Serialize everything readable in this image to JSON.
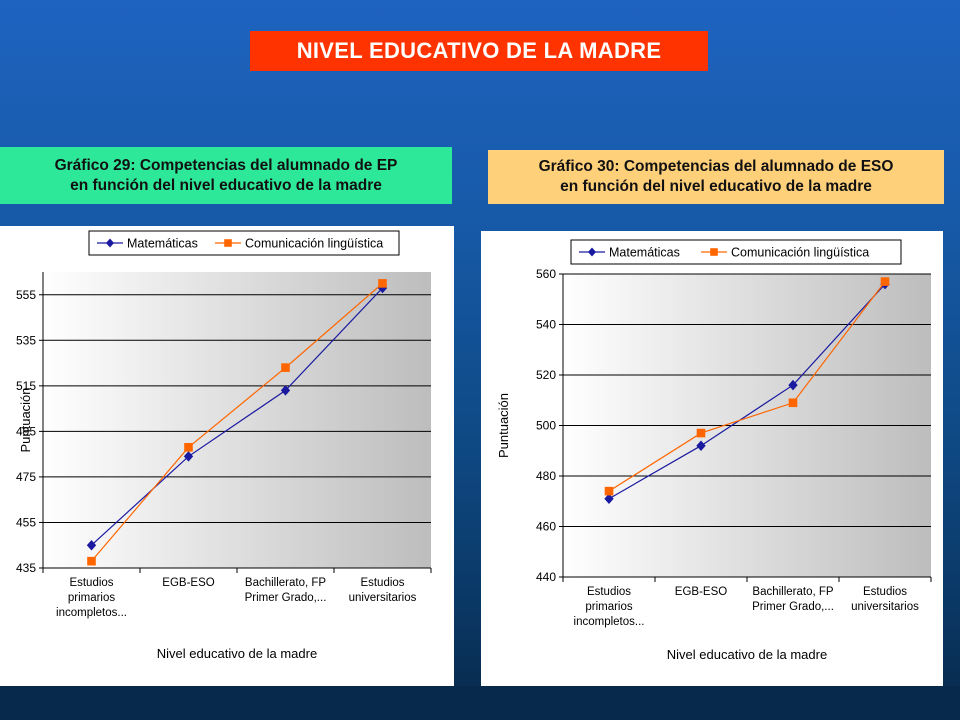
{
  "header": {
    "title": "NIVEL EDUCATIVO DE LA MADRE"
  },
  "chart_titles": {
    "left": [
      "Gráfico 29: Competencias del alumnado de EP",
      "en función del nivel educativo de la madre"
    ],
    "right": [
      "Gráfico 30: Competencias del alumnado de ESO",
      "en función del nivel educativo de la madre"
    ]
  },
  "colors": {
    "matematicas": "#1a1aa0",
    "comunicacion": "#ff6600",
    "title_bg": "#ff3300",
    "left_title_bg": "#2ee89a",
    "right_title_bg": "#ffd07a"
  },
  "chart_data": [
    {
      "type": "line",
      "xlabel": "Nivel educativo de la madre",
      "ylabel": "Puntuación",
      "ylim": [
        435,
        565
      ],
      "yticks": [
        "435",
        "455",
        "475",
        "495",
        "515",
        "535",
        "555"
      ],
      "ytick_values": [
        435,
        455,
        475,
        495,
        515,
        535,
        555
      ],
      "categories": [
        [
          "Estudios",
          "primarios",
          "incompletos..."
        ],
        [
          "EGB-ESO"
        ],
        [
          "Bachillerato, FP",
          "Primer Grado,..."
        ],
        [
          "Estudios",
          "universitarios"
        ]
      ],
      "series": [
        {
          "name": "Matemáticas",
          "values": [
            445,
            484,
            513,
            558
          ]
        },
        {
          "name": "Comunicación lingüística",
          "values": [
            438,
            488,
            523,
            560
          ]
        }
      ],
      "legend": "top",
      "grid": true
    },
    {
      "type": "line",
      "xlabel": "Nivel educativo de la madre",
      "ylabel": "Puntuación",
      "ylim": [
        440,
        560
      ],
      "yticks": [
        "440",
        "460",
        "480",
        "500",
        "520",
        "540",
        "560"
      ],
      "ytick_values": [
        440,
        460,
        480,
        500,
        520,
        540,
        560
      ],
      "categories": [
        [
          "Estudios",
          "primarios",
          "incompletos..."
        ],
        [
          "EGB-ESO"
        ],
        [
          "Bachillerato, FP",
          "Primer Grado,..."
        ],
        [
          "Estudios",
          "universitarios"
        ]
      ],
      "series": [
        {
          "name": "Matemáticas",
          "values": [
            471,
            492,
            516,
            556
          ]
        },
        {
          "name": "Comunicación lingüística",
          "values": [
            474,
            497,
            509,
            557
          ]
        }
      ],
      "legend": "top",
      "grid": true
    }
  ]
}
